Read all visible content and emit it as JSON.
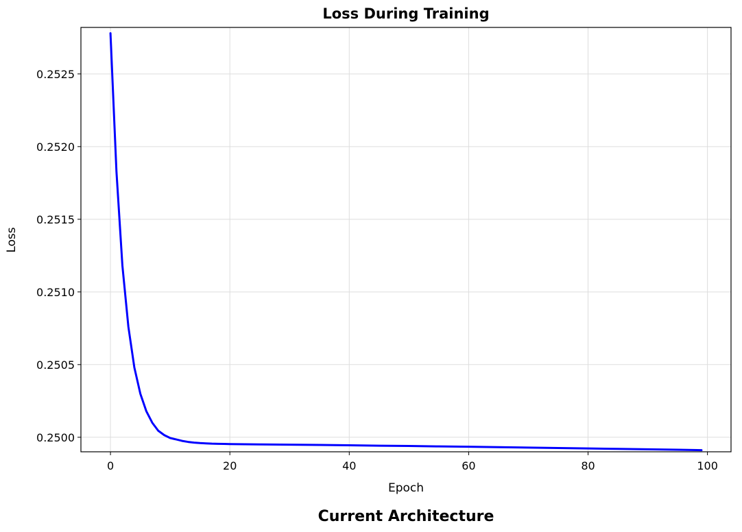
{
  "chart_data": {
    "type": "line",
    "title": "Loss During Training",
    "xlabel": "Epoch",
    "ylabel": "Loss",
    "xlim": [
      -4.95,
      103.95
    ],
    "ylim": [
      0.2499,
      0.25282
    ],
    "xticks": [
      0,
      20,
      40,
      60,
      80,
      100
    ],
    "xtick_labels": [
      "0",
      "20",
      "40",
      "60",
      "80",
      "100"
    ],
    "yticks": [
      0.25,
      0.2505,
      0.251,
      0.2515,
      0.252,
      0.2525
    ],
    "ytick_labels": [
      "0.2500",
      "0.2505",
      "0.2510",
      "0.2515",
      "0.2520",
      "0.2525"
    ],
    "grid": true,
    "series": [
      {
        "color": "#0000ff",
        "x": [
          0,
          1,
          2,
          3,
          4,
          5,
          6,
          7,
          8,
          9,
          10,
          11,
          12,
          13,
          14,
          15,
          16,
          17,
          18,
          19,
          20,
          25,
          30,
          35,
          40,
          45,
          50,
          55,
          60,
          65,
          70,
          75,
          80,
          85,
          90,
          95,
          99
        ],
        "y": [
          0.25278,
          0.25183,
          0.25118,
          0.25076,
          0.25048,
          0.2503,
          0.25018,
          0.2501,
          0.250045,
          0.250015,
          0.249995,
          0.249985,
          0.249975,
          0.249968,
          0.249963,
          0.24996,
          0.249958,
          0.249956,
          0.249955,
          0.249954,
          0.249953,
          0.249951,
          0.249949,
          0.249947,
          0.249945,
          0.249942,
          0.24994,
          0.249937,
          0.249935,
          0.249932,
          0.249929,
          0.249926,
          0.249923,
          0.24992,
          0.249917,
          0.249914,
          0.249911
        ]
      }
    ]
  },
  "footer": {
    "title": "Current Architecture"
  }
}
